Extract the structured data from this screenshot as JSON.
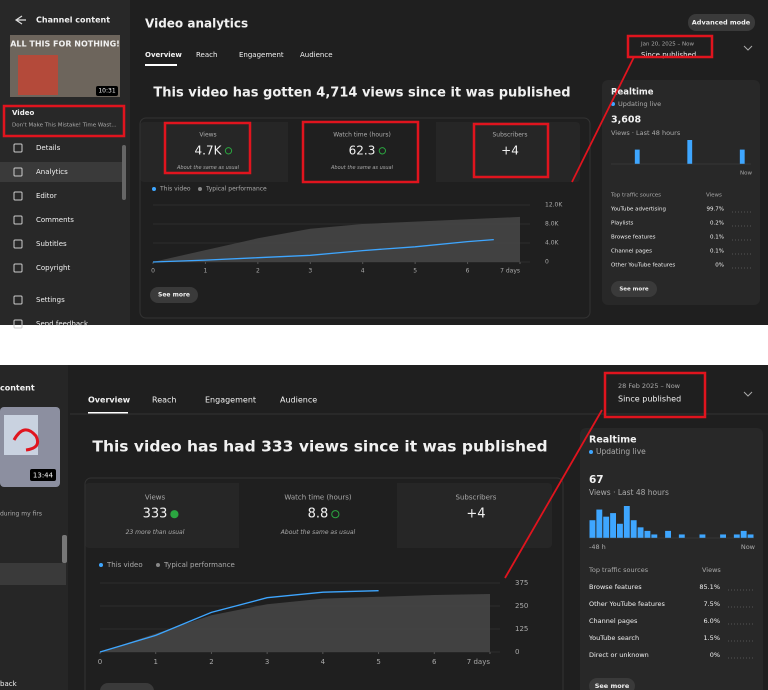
{
  "panels": [
    {
      "sidebar": {
        "title": "Channel content",
        "thumbnail_text": "ALL THIS FOR NOTHING!",
        "duration": "10:31",
        "video_label": "Video",
        "video_title": "Don't Make This Mistake! Time Wast...",
        "nav": [
          "Details",
          "Analytics",
          "Editor",
          "Comments",
          "Subtitles",
          "Copyright",
          "Settings",
          "Send feedback"
        ]
      },
      "header": {
        "title": "Video analytics",
        "button": "Advanced mode"
      },
      "tabs": [
        "Overview",
        "Reach",
        "Engagement",
        "Audience"
      ],
      "date_range": {
        "range": "Jan 20, 2025 – Now",
        "label": "Since published"
      },
      "headline": "This video has gotten 4,714 views since it was published",
      "metrics": [
        {
          "label": "Views",
          "value": "4.7K",
          "note": "About the same as usual"
        },
        {
          "label": "Watch time (hours)",
          "value": "62.3",
          "note": "About the same as usual"
        },
        {
          "label": "Subscribers",
          "value": "+4"
        }
      ],
      "chart_data": {
        "type": "line",
        "series": [
          {
            "name": "This video",
            "color": "#3ea6ff",
            "x": [
              0,
              1,
              2,
              3,
              4,
              5,
              6,
              6.5
            ],
            "values": [
              0,
              400,
              900,
              1400,
              2400,
              3200,
              4300,
              4714
            ]
          },
          {
            "name": "Typical performance",
            "color": "#4a4a4a",
            "x": [
              0,
              1,
              2,
              3,
              4,
              5,
              6,
              7
            ],
            "values": [
              0,
              2500,
              5000,
              7000,
              8000,
              8500,
              9000,
              9500
            ]
          }
        ],
        "xlim": [
          0,
          7
        ],
        "xticks": [
          0,
          1,
          2,
          3,
          4,
          5,
          6,
          {
            "value": 7,
            "label": "7 days"
          }
        ],
        "ylim": [
          0,
          12000
        ],
        "yticks": [
          0,
          {
            "value": 4000,
            "label": "4.0K"
          },
          {
            "value": 8000,
            "label": "8.0K"
          },
          {
            "value": 12000,
            "label": "12.0K"
          }
        ]
      },
      "see_more": "See more",
      "realtime": {
        "title": "Realtime",
        "status": "Updating live",
        "value": "3,608",
        "period": "Views · Last 48 hours",
        "bars": [
          0,
          0,
          0,
          0,
          3,
          0,
          0,
          0,
          0,
          0,
          0,
          0,
          0,
          5,
          0,
          0,
          0,
          0,
          0,
          0,
          0,
          0,
          3,
          0
        ],
        "axis_labels": [
          "Now"
        ],
        "traffic_header": [
          "Top traffic sources",
          "Views"
        ],
        "traffic": [
          [
            "YouTube advertising",
            "99.7%"
          ],
          [
            "Playlists",
            "0.2%"
          ],
          [
            "Browse features",
            "0.1%"
          ],
          [
            "Channel pages",
            "0.1%"
          ],
          [
            "Other YouTube features",
            "0%"
          ]
        ],
        "see_more": "See more"
      }
    },
    {
      "sidebar": {
        "title": "content",
        "duration": "13:44",
        "video_title": "during my firs",
        "footer": "back"
      },
      "tabs": [
        "Overview",
        "Reach",
        "Engagement",
        "Audience"
      ],
      "date_range": {
        "range": "28 Feb 2025 – Now",
        "label": "Since published"
      },
      "headline": "This video has had 333 views since it was published",
      "metrics": [
        {
          "label": "Views",
          "value": "333",
          "note": "23 more than usual"
        },
        {
          "label": "Watch time (hours)",
          "value": "8.8",
          "note": "About the same as usual"
        },
        {
          "label": "Subscribers",
          "value": "+4"
        }
      ],
      "chart_data": {
        "type": "line",
        "series": [
          {
            "name": "This video",
            "color": "#3ea6ff",
            "x": [
              0,
              1,
              2,
              3,
              4,
              5
            ],
            "values": [
              0,
              90,
              215,
              295,
              325,
              333
            ]
          },
          {
            "name": "Typical performance",
            "color": "#4a4a4a",
            "x": [
              0,
              1,
              2,
              3,
              4,
              5,
              6,
              7
            ],
            "values": [
              0,
              100,
              200,
              260,
              290,
              300,
              310,
              315
            ]
          }
        ],
        "xlim": [
          0,
          7
        ],
        "xticks": [
          0,
          1,
          2,
          3,
          4,
          5,
          6,
          {
            "value": 7,
            "label": "7 days"
          }
        ],
        "ylim": [
          0,
          375
        ],
        "yticks": [
          0,
          125,
          250,
          375
        ]
      },
      "realtime": {
        "title": "Realtime",
        "status": "Updating live",
        "value": "67",
        "period": "Views · Last 48 hours",
        "bars": [
          5,
          8,
          6,
          7,
          4,
          9,
          5,
          3,
          2,
          1,
          0,
          2,
          0,
          1,
          0,
          0,
          1,
          0,
          0,
          1,
          0,
          1,
          2,
          1
        ],
        "axis_labels": [
          "-48 h",
          "Now"
        ],
        "traffic_header": [
          "Top traffic sources",
          "Views"
        ],
        "traffic": [
          [
            "Browse features",
            "85.1%"
          ],
          [
            "Other YouTube features",
            "7.5%"
          ],
          [
            "Channel pages",
            "6.0%"
          ],
          [
            "YouTube search",
            "1.5%"
          ],
          [
            "Direct or unknown",
            "0%"
          ]
        ],
        "see_more": "See more"
      }
    }
  ]
}
